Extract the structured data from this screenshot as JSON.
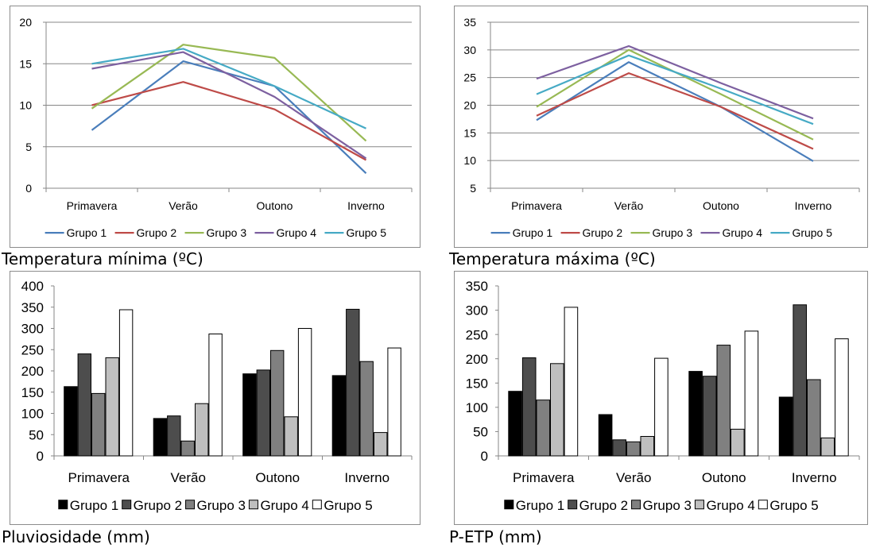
{
  "colors": {
    "grupo1_line": "#4a7ebb",
    "grupo2_line": "#be4b48",
    "grupo3_line": "#98b954",
    "grupo4_line": "#7d60a0",
    "grupo5_line": "#46aac5",
    "grupo1_bar": "#000000",
    "grupo2_bar": "#4d4d4d",
    "grupo3_bar": "#808080",
    "grupo4_bar": "#bfbfbf",
    "grupo5_bar": "#ffffff",
    "gridline": "#878787",
    "frame": "#8c8c8c"
  },
  "captions": {
    "tmin": "Temperatura mínima (ºC)",
    "tmax": "Temperatura máxima (ºC)",
    "pluv": "Pluviosidade (mm)",
    "petp": "P-ETP (mm)"
  },
  "chart_data": [
    {
      "type": "line",
      "title": "Temperatura mínima (ºC)",
      "categories": [
        "Primavera",
        "Verão",
        "Outono",
        "Inverno"
      ],
      "ylim": [
        0,
        20
      ],
      "yticks": [
        0,
        5,
        10,
        15,
        20
      ],
      "grid": true,
      "legend": "bottom",
      "series": [
        {
          "name": "Grupo 1",
          "values": [
            7.0,
            15.3,
            12.3,
            1.8
          ]
        },
        {
          "name": "Grupo 2",
          "values": [
            10.0,
            12.8,
            9.5,
            3.4
          ]
        },
        {
          "name": "Grupo 3",
          "values": [
            9.6,
            17.3,
            15.7,
            5.7
          ]
        },
        {
          "name": "Grupo 4",
          "values": [
            14.4,
            16.4,
            11.0,
            3.6
          ]
        },
        {
          "name": "Grupo 5",
          "values": [
            15.0,
            16.8,
            12.3,
            7.2
          ]
        }
      ]
    },
    {
      "type": "line",
      "title": "Temperatura máxima (ºC)",
      "categories": [
        "Primavera",
        "Verão",
        "Outono",
        "Inverno"
      ],
      "ylim": [
        5,
        35
      ],
      "yticks": [
        5,
        10,
        15,
        20,
        25,
        30,
        35
      ],
      "grid": true,
      "legend": "bottom",
      "series": [
        {
          "name": "Grupo 1",
          "values": [
            17.3,
            27.8,
            19.7,
            9.9
          ]
        },
        {
          "name": "Grupo 2",
          "values": [
            18.1,
            25.8,
            19.7,
            12.1
          ]
        },
        {
          "name": "Grupo 3",
          "values": [
            19.7,
            30.0,
            22.0,
            13.8
          ]
        },
        {
          "name": "Grupo 4",
          "values": [
            24.8,
            30.7,
            24.0,
            17.6
          ]
        },
        {
          "name": "Grupo 5",
          "values": [
            22.0,
            29.0,
            23.0,
            16.6
          ]
        }
      ]
    },
    {
      "type": "bar",
      "title": "Pluviosidade (mm)",
      "categories": [
        "Primavera",
        "Verão",
        "Outono",
        "Inverno"
      ],
      "ylim": [
        0,
        400
      ],
      "yticks": [
        0,
        50,
        100,
        150,
        200,
        250,
        300,
        350,
        400
      ],
      "grid": false,
      "legend": "bottom",
      "series": [
        {
          "name": "Grupo 1",
          "values": [
            163,
            88,
            193,
            189
          ]
        },
        {
          "name": "Grupo 2",
          "values": [
            240,
            94,
            202,
            345
          ]
        },
        {
          "name": "Grupo 3",
          "values": [
            147,
            35,
            248,
            222
          ]
        },
        {
          "name": "Grupo 4",
          "values": [
            231,
            123,
            92,
            55
          ]
        },
        {
          "name": "Grupo 5",
          "values": [
            344,
            287,
            300,
            254
          ]
        }
      ]
    },
    {
      "type": "bar",
      "title": "P-ETP (mm)",
      "categories": [
        "Primavera",
        "Verão",
        "Outono",
        "Inverno"
      ],
      "ylim": [
        0,
        350
      ],
      "yticks": [
        0,
        50,
        100,
        150,
        200,
        250,
        300,
        350
      ],
      "grid": false,
      "legend": "bottom",
      "series": [
        {
          "name": "Grupo 1",
          "values": [
            133,
            85,
            174,
            121
          ]
        },
        {
          "name": "Grupo 2",
          "values": [
            202,
            33,
            164,
            311
          ]
        },
        {
          "name": "Grupo 3",
          "values": [
            115,
            29,
            228,
            157
          ]
        },
        {
          "name": "Grupo 4",
          "values": [
            190,
            40,
            55,
            37
          ]
        },
        {
          "name": "Grupo 5",
          "values": [
            306,
            201,
            257,
            241
          ]
        }
      ]
    }
  ]
}
